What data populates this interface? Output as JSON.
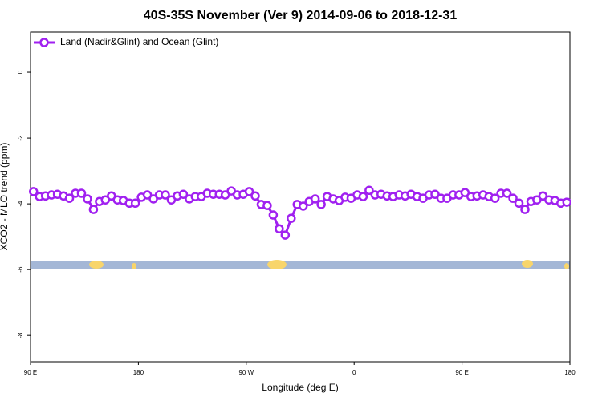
{
  "chart_data": {
    "type": "line",
    "title": "40S-35S November (Ver 9)   2014-09-06 to 2018-12-31",
    "xlabel": "Longitude (deg E)",
    "ylabel": "XCO2 - MLO trend (ppm)",
    "xlim": [
      90,
      540
    ],
    "ylim": [
      -8.8,
      1.22
    ],
    "xticks": [
      {
        "value": 90,
        "label": "90 E"
      },
      180,
      {
        "value": 270,
        "label": "90 W"
      },
      {
        "value": 360,
        "label": "0"
      },
      {
        "value": 450,
        "label": "90 E"
      },
      {
        "value": 540,
        "label": "180"
      }
    ],
    "yticks": [
      0,
      -2,
      -4,
      -6,
      -8
    ],
    "legend": "upper left",
    "x": [
      92.5,
      97.5,
      102.5,
      107.5,
      112.5,
      117.5,
      122.5,
      127.5,
      132.5,
      137.5,
      142.5,
      147.5,
      152.5,
      157.5,
      162.5,
      167.5,
      172.5,
      177.5,
      182.5,
      187.5,
      192.5,
      197.5,
      202.5,
      207.5,
      212.5,
      217.5,
      222.5,
      227.5,
      232.5,
      237.5,
      242.5,
      247.5,
      252.5,
      257.5,
      262.5,
      267.5,
      272.5,
      277.5,
      282.5,
      287.5,
      292.5,
      297.5,
      302.5,
      307.5,
      312.5,
      317.5,
      322.5,
      327.5,
      332.5,
      337.5,
      342.5,
      347.5,
      352.5,
      357.5,
      362.5,
      367.5,
      372.5,
      377.5,
      382.5,
      387.5,
      392.5,
      397.5,
      402.5,
      407.5,
      412.5,
      417.5,
      422.5,
      427.5,
      432.5,
      437.5,
      442.5,
      447.5,
      452.5,
      457.5,
      462.5,
      467.5,
      472.5,
      477.5,
      482.5,
      487.5,
      492.5,
      497.5,
      502.5,
      507.5,
      512.5,
      517.5,
      522.5,
      527.5,
      532.5,
      537.5
    ],
    "series": [
      {
        "name": "Land (Nadir&Glint) and Ocean (Glint)",
        "color": "#a020f0",
        "values": [
          -3.63,
          -3.78,
          -3.76,
          -3.73,
          -3.71,
          -3.76,
          -3.83,
          -3.68,
          -3.68,
          -3.85,
          -4.17,
          -3.93,
          -3.88,
          -3.76,
          -3.88,
          -3.9,
          -3.98,
          -3.98,
          -3.8,
          -3.73,
          -3.85,
          -3.73,
          -3.73,
          -3.88,
          -3.76,
          -3.71,
          -3.85,
          -3.78,
          -3.78,
          -3.68,
          -3.71,
          -3.71,
          -3.73,
          -3.61,
          -3.73,
          -3.71,
          -3.63,
          -3.76,
          -4.02,
          -4.05,
          -4.34,
          -4.76,
          -4.95,
          -4.44,
          -4.02,
          -4.07,
          -3.93,
          -3.85,
          -4.02,
          -3.78,
          -3.85,
          -3.9,
          -3.8,
          -3.83,
          -3.73,
          -3.78,
          -3.59,
          -3.73,
          -3.71,
          -3.76,
          -3.78,
          -3.73,
          -3.76,
          -3.71,
          -3.78,
          -3.83,
          -3.73,
          -3.71,
          -3.83,
          -3.83,
          -3.73,
          -3.73,
          -3.66,
          -3.78,
          -3.76,
          -3.73,
          -3.78,
          -3.83,
          -3.68,
          -3.68,
          -3.83,
          -3.98,
          -4.17,
          -3.93,
          -3.88,
          -3.76,
          -3.88,
          -3.9,
          -3.98,
          -3.95
        ]
      }
    ]
  }
}
